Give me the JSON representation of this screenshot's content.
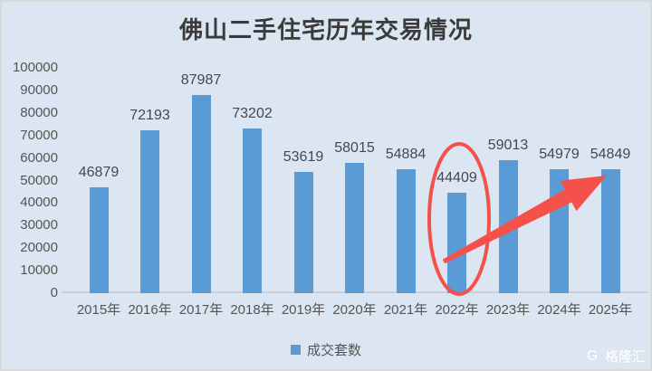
{
  "chart_data": {
    "type": "bar",
    "title": "佛山二手住宅历年交易情况",
    "categories": [
      "2015年",
      "2016年",
      "2017年",
      "2018年",
      "2019年",
      "2020年",
      "2021年",
      "2022年",
      "2023年",
      "2024年",
      "2025年"
    ],
    "values": [
      46879,
      72193,
      87987,
      73202,
      53619,
      58015,
      54884,
      44409,
      59013,
      54979,
      54849
    ],
    "series_name": "成交套数",
    "xlabel": "",
    "ylabel": "",
    "ylim": [
      0,
      100000
    ],
    "ytick_step": 10000,
    "ytick_labels": [
      "0",
      "10000",
      "20000",
      "30000",
      "40000",
      "50000",
      "60000",
      "70000",
      "80000",
      "90000",
      "100000"
    ],
    "grid": false,
    "legend_position": "bottom",
    "bar_color": "#5b9bd5",
    "background": "#dce6f3",
    "annotations": {
      "ellipse_highlight_category": "2022年",
      "ellipse_highlight_value": 44409,
      "arrow_from_category": "2022年",
      "arrow_to_category": "2025年",
      "color": "#f4514a"
    }
  },
  "watermark": {
    "logo": "G",
    "text": "格隆汇"
  }
}
